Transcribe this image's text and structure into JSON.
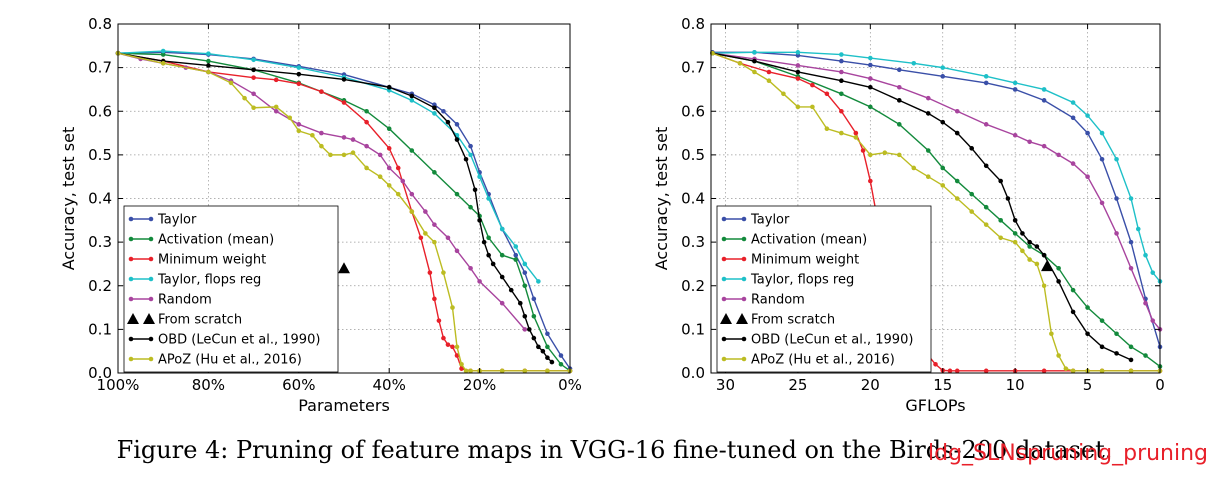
{
  "caption": "Figure 4: Pruning of feature maps in VGG-16 fine-tuned on the Birds-200 dataset.",
  "watermark": "ldg_SLNspruning_pruning",
  "series_colors": {
    "Taylor": "#3a4fa8",
    "Activation (mean)": "#138a3c",
    "Minimum weight": "#e8202a",
    "Taylor, flops reg": "#1ec0c8",
    "Random": "#a8449e",
    "OBD (LeCun et al., 1990)": "#000000",
    "APoZ (Hu et al., 2016)": "#bcbc22"
  },
  "chart_data": [
    {
      "type": "line",
      "ylabel": "Accuracy, test set",
      "xlabel": "Parameters",
      "xlim": [
        100,
        0
      ],
      "ylim": [
        0,
        0.8
      ],
      "xticks": [
        100,
        80,
        60,
        40,
        20,
        0
      ],
      "xtick_labels": [
        "100%",
        "80%",
        "60%",
        "40%",
        "20%",
        "0%"
      ],
      "yticks": [
        0.0,
        0.1,
        0.2,
        0.3,
        0.4,
        0.5,
        0.6,
        0.7,
        0.8
      ],
      "ytick_labels": [
        "0.0",
        "0.1",
        "0.2",
        "0.3",
        "0.4",
        "0.5",
        "0.6",
        "0.7",
        "0.8"
      ],
      "grid": true,
      "legend_position": "lower-left",
      "legend": [
        "Taylor",
        "Activation (mean)",
        "Minimum weight",
        "Taylor, flops reg",
        "Random",
        "From scratch",
        "OBD (LeCun et al., 1990)",
        "APoZ (Hu et al., 2016)"
      ],
      "series": [
        {
          "name": "Taylor",
          "x": [
            100,
            90,
            80,
            70,
            60,
            50,
            40,
            35,
            30,
            28,
            25,
            22,
            20,
            18,
            15,
            12,
            10,
            8,
            5,
            2,
            0
          ],
          "y": [
            0.733,
            0.735,
            0.73,
            0.72,
            0.703,
            0.684,
            0.655,
            0.64,
            0.615,
            0.6,
            0.57,
            0.52,
            0.46,
            0.41,
            0.33,
            0.27,
            0.23,
            0.17,
            0.09,
            0.04,
            0.01
          ]
        },
        {
          "name": "Activation (mean)",
          "x": [
            100,
            90,
            80,
            70,
            60,
            55,
            50,
            45,
            40,
            35,
            30,
            25,
            22,
            20,
            18,
            15,
            12,
            10,
            8,
            5,
            2,
            0
          ],
          "y": [
            0.733,
            0.73,
            0.715,
            0.695,
            0.665,
            0.645,
            0.625,
            0.6,
            0.56,
            0.51,
            0.46,
            0.41,
            0.38,
            0.36,
            0.31,
            0.27,
            0.26,
            0.2,
            0.13,
            0.06,
            0.02,
            0.005
          ]
        },
        {
          "name": "Minimum weight",
          "x": [
            100,
            90,
            80,
            70,
            65,
            60,
            55,
            50,
            45,
            40,
            38,
            35,
            33,
            31,
            30,
            29,
            28,
            27,
            26,
            25,
            24,
            22,
            20,
            15,
            10,
            5,
            0
          ],
          "y": [
            0.733,
            0.715,
            0.69,
            0.677,
            0.672,
            0.663,
            0.645,
            0.62,
            0.575,
            0.515,
            0.47,
            0.37,
            0.31,
            0.23,
            0.17,
            0.12,
            0.08,
            0.065,
            0.06,
            0.04,
            0.01,
            0.005,
            0.005,
            0.005,
            0.005,
            0.005,
            0.005
          ]
        },
        {
          "name": "Taylor, flops reg",
          "x": [
            100,
            90,
            80,
            70,
            60,
            50,
            40,
            35,
            30,
            25,
            22,
            20,
            18,
            15,
            12,
            10,
            7
          ],
          "y": [
            0.733,
            0.738,
            0.732,
            0.718,
            0.7,
            0.678,
            0.648,
            0.625,
            0.595,
            0.545,
            0.5,
            0.45,
            0.4,
            0.33,
            0.29,
            0.25,
            0.21
          ]
        },
        {
          "name": "Random",
          "x": [
            100,
            95,
            90,
            85,
            80,
            75,
            70,
            65,
            60,
            55,
            50,
            48,
            45,
            42,
            40,
            37,
            35,
            32,
            30,
            27,
            25,
            22,
            20,
            15,
            10
          ],
          "y": [
            0.733,
            0.72,
            0.71,
            0.7,
            0.69,
            0.67,
            0.64,
            0.6,
            0.57,
            0.55,
            0.54,
            0.535,
            0.52,
            0.5,
            0.47,
            0.44,
            0.41,
            0.37,
            0.34,
            0.31,
            0.28,
            0.24,
            0.21,
            0.16,
            0.1
          ]
        },
        {
          "name": "From scratch",
          "marker_only": true,
          "x": [
            50
          ],
          "y": [
            0.24
          ]
        },
        {
          "name": "OBD (LeCun et al., 1990)",
          "x": [
            100,
            90,
            80,
            70,
            60,
            50,
            40,
            35,
            30,
            27,
            25,
            23,
            21,
            20,
            19,
            18,
            17,
            15,
            13,
            11,
            10,
            9,
            8,
            7,
            6,
            5,
            4
          ],
          "y": [
            0.733,
            0.715,
            0.705,
            0.695,
            0.685,
            0.673,
            0.655,
            0.635,
            0.608,
            0.575,
            0.535,
            0.49,
            0.42,
            0.35,
            0.3,
            0.27,
            0.25,
            0.22,
            0.19,
            0.16,
            0.13,
            0.1,
            0.08,
            0.06,
            0.05,
            0.035,
            0.025
          ]
        },
        {
          "name": "APoZ (Hu et al., 2016)",
          "x": [
            100,
            90,
            80,
            75,
            72,
            70,
            65,
            62,
            60,
            57,
            55,
            53,
            50,
            48,
            45,
            42,
            40,
            38,
            35,
            32,
            30,
            28,
            26,
            25,
            24,
            23,
            22,
            20,
            15,
            10,
            5,
            0
          ],
          "y": [
            0.733,
            0.71,
            0.69,
            0.665,
            0.63,
            0.608,
            0.61,
            0.585,
            0.555,
            0.545,
            0.52,
            0.5,
            0.5,
            0.505,
            0.47,
            0.45,
            0.43,
            0.41,
            0.37,
            0.32,
            0.3,
            0.23,
            0.15,
            0.06,
            0.02,
            0.005,
            0.005,
            0.005,
            0.005,
            0.005,
            0.005,
            0.005
          ]
        }
      ]
    },
    {
      "type": "line",
      "ylabel": "Accuracy, test set",
      "xlabel": "GFLOPs",
      "xlim": [
        31,
        0
      ],
      "ylim": [
        0,
        0.8
      ],
      "xticks": [
        30,
        25,
        20,
        15,
        10,
        5,
        0
      ],
      "xtick_labels": [
        "30",
        "25",
        "20",
        "15",
        "10",
        "5",
        "0"
      ],
      "yticks": [
        0.0,
        0.1,
        0.2,
        0.3,
        0.4,
        0.5,
        0.6,
        0.7,
        0.8
      ],
      "ytick_labels": [
        "0.0",
        "0.1",
        "0.2",
        "0.3",
        "0.4",
        "0.5",
        "0.6",
        "0.7",
        "0.8"
      ],
      "grid": true,
      "legend_position": "lower-left",
      "legend": [
        "Taylor",
        "Activation (mean)",
        "Minimum weight",
        "Taylor, flops reg",
        "Random",
        "From scratch",
        "OBD (LeCun et al., 1990)",
        "APoZ (Hu et al., 2016)"
      ],
      "series": [
        {
          "name": "Taylor",
          "x": [
            30.9,
            28,
            25,
            22,
            20,
            18,
            15,
            12,
            10,
            8,
            6,
            5,
            4,
            3,
            2,
            1,
            0
          ],
          "y": [
            0.735,
            0.735,
            0.728,
            0.715,
            0.706,
            0.695,
            0.68,
            0.665,
            0.65,
            0.625,
            0.585,
            0.55,
            0.49,
            0.4,
            0.3,
            0.17,
            0.06
          ]
        },
        {
          "name": "Activation (mean)",
          "x": [
            30.9,
            28,
            25,
            22,
            20,
            18,
            16,
            15,
            14,
            13,
            12,
            11,
            10,
            9,
            8,
            7,
            6,
            5,
            4,
            3,
            2,
            1,
            0
          ],
          "y": [
            0.733,
            0.715,
            0.68,
            0.64,
            0.61,
            0.57,
            0.51,
            0.47,
            0.44,
            0.41,
            0.38,
            0.35,
            0.32,
            0.29,
            0.27,
            0.24,
            0.19,
            0.15,
            0.12,
            0.09,
            0.06,
            0.04,
            0.015
          ]
        },
        {
          "name": "Minimum weight",
          "x": [
            30.9,
            29,
            27,
            25,
            24,
            23,
            22,
            21,
            20.5,
            20,
            19.5,
            19,
            18.5,
            18,
            17.5,
            17,
            16.5,
            16,
            15.5,
            15,
            14.5,
            14,
            12,
            10,
            8,
            6,
            4,
            2,
            0
          ],
          "y": [
            0.733,
            0.71,
            0.69,
            0.675,
            0.66,
            0.64,
            0.6,
            0.55,
            0.51,
            0.44,
            0.35,
            0.25,
            0.17,
            0.1,
            0.08,
            0.07,
            0.05,
            0.04,
            0.02,
            0.006,
            0.005,
            0.005,
            0.005,
            0.005,
            0.005,
            0.005,
            0.005,
            0.005,
            0.005
          ]
        },
        {
          "name": "Taylor, flops reg",
          "x": [
            30.9,
            28,
            25,
            22,
            20,
            17,
            15,
            12,
            10,
            8,
            6,
            5,
            4,
            3,
            2,
            1.5,
            1,
            0.5,
            0
          ],
          "y": [
            0.733,
            0.735,
            0.735,
            0.73,
            0.722,
            0.71,
            0.7,
            0.68,
            0.665,
            0.65,
            0.62,
            0.59,
            0.55,
            0.49,
            0.4,
            0.33,
            0.27,
            0.23,
            0.21
          ]
        },
        {
          "name": "Random",
          "x": [
            30.9,
            28,
            25,
            22,
            20,
            18,
            16,
            14,
            12,
            10,
            9,
            8,
            7,
            6,
            5,
            4,
            3,
            2,
            1,
            0.5,
            0
          ],
          "y": [
            0.733,
            0.72,
            0.705,
            0.69,
            0.675,
            0.655,
            0.63,
            0.6,
            0.57,
            0.545,
            0.53,
            0.52,
            0.5,
            0.48,
            0.45,
            0.39,
            0.32,
            0.24,
            0.16,
            0.12,
            0.1
          ]
        },
        {
          "name": "From scratch",
          "marker_only": true,
          "x": [
            7.8
          ],
          "y": [
            0.245
          ]
        },
        {
          "name": "OBD (LeCun et al., 1990)",
          "x": [
            30.9,
            28,
            25,
            22,
            20,
            18,
            16,
            15,
            14,
            13,
            12,
            11,
            10.5,
            10,
            9.5,
            9,
            8.5,
            8,
            7,
            6,
            5,
            4,
            3,
            2
          ],
          "y": [
            0.733,
            0.715,
            0.69,
            0.67,
            0.655,
            0.625,
            0.595,
            0.575,
            0.55,
            0.515,
            0.475,
            0.44,
            0.4,
            0.35,
            0.32,
            0.3,
            0.29,
            0.27,
            0.21,
            0.14,
            0.09,
            0.06,
            0.045,
            0.03
          ]
        },
        {
          "name": "APoZ (Hu et al., 2016)",
          "x": [
            30.9,
            29,
            28,
            27,
            26,
            25,
            24,
            23,
            22,
            21,
            20,
            19,
            18,
            17,
            16,
            15,
            14,
            13,
            12,
            11,
            10,
            9.5,
            9,
            8.5,
            8,
            7.5,
            7,
            6.5,
            6,
            5,
            4,
            2,
            0
          ],
          "y": [
            0.733,
            0.71,
            0.69,
            0.67,
            0.64,
            0.61,
            0.61,
            0.56,
            0.55,
            0.54,
            0.5,
            0.505,
            0.5,
            0.47,
            0.45,
            0.43,
            0.4,
            0.37,
            0.34,
            0.31,
            0.3,
            0.28,
            0.26,
            0.25,
            0.2,
            0.09,
            0.04,
            0.01,
            0.005,
            0.005,
            0.005,
            0.005,
            0.005
          ]
        }
      ]
    }
  ]
}
